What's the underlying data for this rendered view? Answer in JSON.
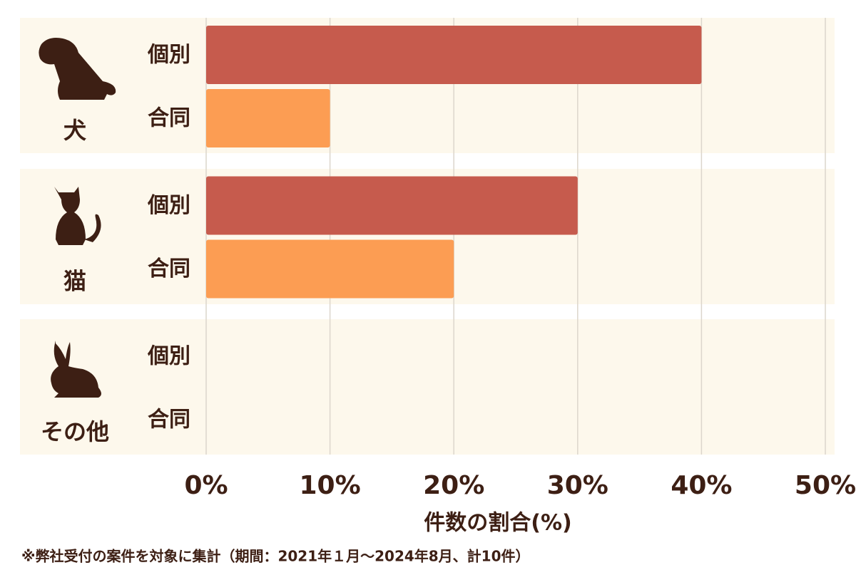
{
  "chart_data": {
    "type": "bar",
    "orientation": "horizontal",
    "categories": [
      "犬",
      "猫",
      "その他"
    ],
    "series": [
      {
        "name": "個別",
        "color": "#c65b4d",
        "values": [
          40,
          30,
          0
        ]
      },
      {
        "name": "合同",
        "color": "#fc9d53",
        "values": [
          10,
          20,
          0
        ]
      }
    ],
    "xlim": [
      0,
      50
    ],
    "xticks": [
      {
        "value": 0,
        "label": "0%"
      },
      {
        "value": 10,
        "label": "10%"
      },
      {
        "value": 20,
        "label": "20%"
      },
      {
        "value": 30,
        "label": "30%"
      },
      {
        "value": 40,
        "label": "40%"
      },
      {
        "value": 50,
        "label": "50%"
      }
    ],
    "xlabel": "件数の割合(%)",
    "grid": true,
    "footnote": "※弊社受付の案件を対象に集計（期間：2021年１月〜2024年8月、計10件）"
  }
}
